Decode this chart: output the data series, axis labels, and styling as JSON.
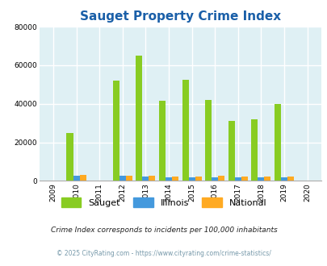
{
  "title": "Sauget Property Crime Index",
  "years": [
    2009,
    2010,
    2011,
    2012,
    2013,
    2014,
    2015,
    2016,
    2017,
    2018,
    2019,
    2020
  ],
  "sauget": [
    0,
    25000,
    0,
    52000,
    65000,
    41500,
    52500,
    42000,
    31000,
    32000,
    40000,
    0
  ],
  "illinois": [
    0,
    2500,
    0,
    2500,
    2200,
    2000,
    1800,
    1800,
    1700,
    1700,
    1800,
    0
  ],
  "national": [
    0,
    3100,
    0,
    2700,
    2500,
    2400,
    2400,
    2500,
    2300,
    2100,
    2100,
    0
  ],
  "sauget_color": "#88cc22",
  "illinois_color": "#4499dd",
  "national_color": "#ffaa22",
  "bg_color": "#dff0f4",
  "ylim": [
    0,
    80000
  ],
  "yticks": [
    0,
    20000,
    40000,
    60000,
    80000
  ],
  "footnote1": "Crime Index corresponds to incidents per 100,000 inhabitants",
  "footnote2": "© 2025 CityRating.com - https://www.cityrating.com/crime-statistics/",
  "legend_labels": [
    "Sauget",
    "Illinois",
    "National"
  ]
}
